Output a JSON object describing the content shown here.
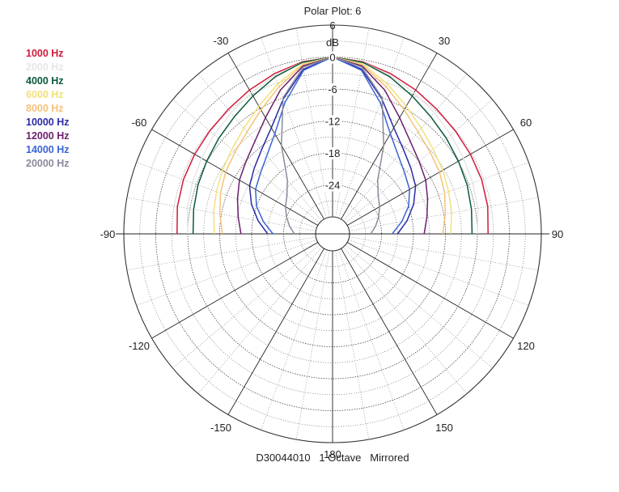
{
  "chart_data": {
    "type": "polar",
    "title": "Polar Plot: 6",
    "subtitle": "D30044010   1 Octave   Mirrored",
    "radial_unit": "dB",
    "radial_range": [
      -30,
      6
    ],
    "radial_ticks": [
      "6",
      "0",
      "-6",
      "-12",
      "-18",
      "-24"
    ],
    "radial_tick_values": [
      6,
      0,
      -6,
      -12,
      -18,
      -24
    ],
    "angle_ticks": [
      "-30",
      "30",
      "-60",
      "60",
      "-90",
      "90",
      "-120",
      "120",
      "-150",
      "150",
      "180"
    ],
    "angle_tick_values": [
      -30,
      30,
      -60,
      60,
      -90,
      90,
      -120,
      120,
      -150,
      150,
      180
    ],
    "mirrored": true,
    "angles_deg": [
      0,
      10,
      20,
      30,
      40,
      50,
      60,
      70,
      80,
      90
    ],
    "series": [
      {
        "name": "1000 Hz",
        "color": "#d11a3a",
        "values": [
          0,
          -0.4,
          -1.2,
          -2.0,
          -2.7,
          -3.1,
          -3.3,
          -3.4,
          -3.6,
          -4.0
        ]
      },
      {
        "name": "2000 Hz",
        "color": "#e6e6e6",
        "values": [
          0,
          -0.5,
          -1.5,
          -2.6,
          -3.5,
          -4.2,
          -4.8,
          -5.2,
          -5.5,
          -6.0
        ]
      },
      {
        "name": "4000 Hz",
        "color": "#0b5a3a",
        "values": [
          0,
          -0.5,
          -1.8,
          -3.3,
          -4.5,
          -5.3,
          -5.9,
          -6.3,
          -6.7,
          -7.0
        ]
      },
      {
        "name": "6000 Hz",
        "color": "#f1e27a",
        "values": [
          0,
          -0.8,
          -3.2,
          -5.5,
          -7.3,
          -8.5,
          -9.3,
          -10.0,
          -10.5,
          -11.0
        ]
      },
      {
        "name": "8000 Hz",
        "color": "#f6c27a",
        "values": [
          0,
          -1.0,
          -3.8,
          -6.3,
          -8.2,
          -9.3,
          -10.0,
          -10.8,
          -11.7,
          -12.5
        ]
      },
      {
        "name": "10000 Hz",
        "color": "#2b2ba8",
        "values": [
          0,
          -1.8,
          -6.2,
          -10.2,
          -12.5,
          -14.0,
          -15.2,
          -17.0,
          -19.0,
          -21.0
        ]
      },
      {
        "name": "12000 Hz",
        "color": "#6b1f6e",
        "values": [
          0,
          -1.2,
          -4.5,
          -8.0,
          -10.5,
          -12.0,
          -13.0,
          -14.2,
          -15.2,
          -16.0
        ]
      },
      {
        "name": "14000 Hz",
        "color": "#3a64d6",
        "values": [
          0,
          -2.0,
          -7.0,
          -11.5,
          -14.0,
          -15.5,
          -16.5,
          -18.0,
          -20.0,
          -22.0
        ]
      },
      {
        "name": "20000 Hz",
        "color": "#8a8a9c",
        "values": [
          0,
          -1.4,
          -6.0,
          -14.0,
          -20.0,
          -22.0,
          -23.0,
          -24.0,
          -25.0,
          -26.0
        ]
      }
    ],
    "grid": true,
    "legend_position": "top-left"
  }
}
